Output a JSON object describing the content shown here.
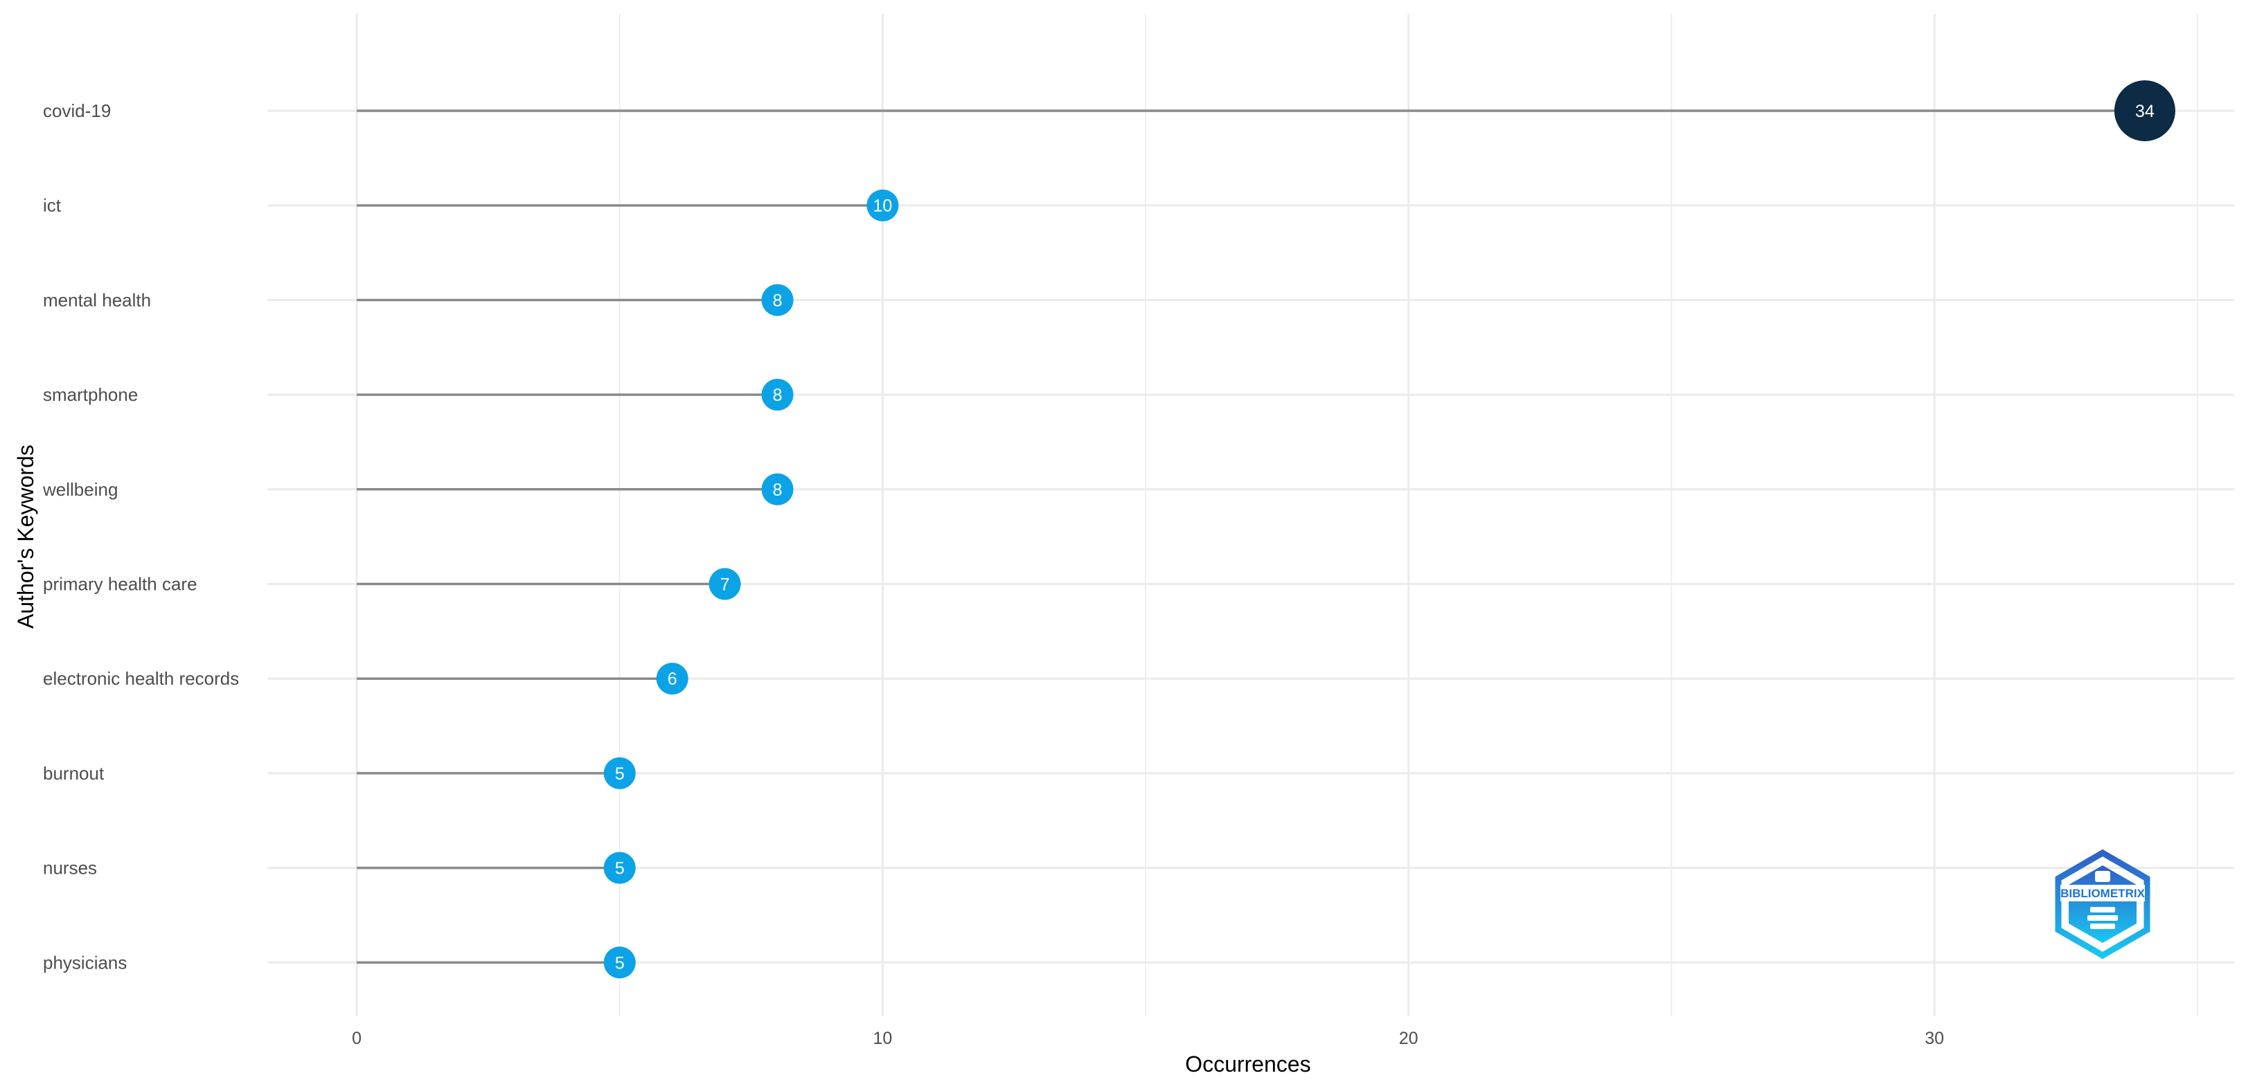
{
  "chart_data": {
    "type": "lollipop",
    "xlabel": "Occurrences",
    "ylabel": "Author's Keywords",
    "xlim": [
      -1.7,
      35.7
    ],
    "x_ticks": [
      0,
      10,
      20,
      30
    ],
    "x_minor_ticks": [
      5,
      15,
      25,
      35
    ],
    "grid": true,
    "categories": [
      "covid-19",
      "ict",
      "mental health",
      "smartphone",
      "wellbeing",
      "primary health care",
      "electronic health records",
      "burnout",
      "nurses",
      "physicians"
    ],
    "values": [
      34,
      10,
      8,
      8,
      8,
      7,
      6,
      5,
      5,
      5
    ],
    "colors": {
      "stem": "#8a8a8a",
      "point_max": "#0d2b45",
      "point_other": "#0ca3e6",
      "grid": "#ebebeb",
      "label_text": "#ffffff"
    },
    "logo": {
      "text": "BIBLIOMETRIX",
      "color_top": "#2f5fc8",
      "color_bottom": "#19c7f0"
    }
  }
}
